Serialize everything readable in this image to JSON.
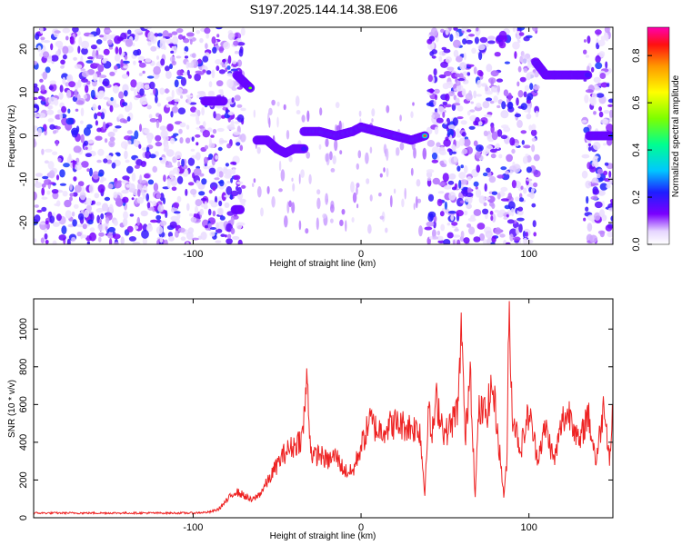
{
  "title": "S197.2025.144.14.38.E06",
  "chart_data": [
    {
      "type": "heatmap",
      "xlabel": "Height of straight line (km)",
      "ylabel": "Frequency (Hz)",
      "xlim": [
        -195,
        150
      ],
      "ylim": [
        -25,
        25
      ],
      "xticks": [
        -100,
        0,
        100
      ],
      "yticks": [
        -20,
        -10,
        0,
        10,
        20
      ],
      "colorbar": {
        "label": "Normalized spectral amplitude",
        "range": [
          0.0,
          0.92
        ],
        "ticks": [
          0.0,
          0.2,
          0.4,
          0.6,
          0.8
        ]
      },
      "noise_regions": [
        {
          "x0": -195,
          "x1": -70
        },
        {
          "x0": 40,
          "x1": 105
        },
        {
          "x0": 133,
          "x1": 150
        }
      ],
      "tracks": [
        {
          "x": [
            -93,
            -82
          ],
          "f": [
            8,
            8
          ],
          "amp": 0.3
        },
        {
          "x": [
            -74,
            -66
          ],
          "f": [
            14,
            11
          ],
          "amp": 0.35
        },
        {
          "x": [
            -75,
            -72
          ],
          "f": [
            -17,
            -17
          ],
          "amp": 0.3
        },
        {
          "x": [
            -62,
            -56,
            -50,
            -45,
            -40,
            -34
          ],
          "f": [
            -1,
            -1,
            -3,
            -4,
            -3,
            -3
          ],
          "amp": 0.35
        },
        {
          "x": [
            -34,
            -25,
            -15,
            -5,
            0,
            10,
            20,
            30,
            38
          ],
          "f": [
            1,
            1,
            0,
            1,
            2,
            1,
            0,
            -1,
            0
          ],
          "amp": 0.7
        },
        {
          "x": [
            104,
            110,
            115,
            125,
            135
          ],
          "f": [
            17,
            14,
            14,
            14,
            14
          ],
          "amp": 0.5
        },
        {
          "x": [
            136,
            150
          ],
          "f": [
            0,
            0
          ],
          "amp": 0.5
        }
      ]
    },
    {
      "type": "line",
      "xlabel": "Height of straight line (km)",
      "ylabel": "SNR (10 * v/v)",
      "xlim": [
        -195,
        150
      ],
      "ylim": [
        0,
        1160
      ],
      "xticks": [
        -100,
        0,
        100
      ],
      "yticks": [
        0,
        200,
        400,
        600,
        800,
        1000
      ],
      "color": "#ee2222",
      "series": [
        {
          "x": [
            -195,
            -160,
            -120,
            -100,
            -90,
            -85,
            -80,
            -75,
            -70,
            -65,
            -60,
            -55,
            -50,
            -45,
            -40,
            -35,
            -32,
            -30,
            -28,
            -25,
            -20,
            -15,
            -10,
            -5,
            0,
            3,
            5,
            10,
            15,
            20,
            25,
            30,
            35,
            38,
            40,
            42,
            45,
            50,
            55,
            58,
            60,
            62,
            65,
            68,
            70,
            75,
            78,
            80,
            85,
            87,
            88,
            90,
            92,
            95,
            100,
            105,
            110,
            115,
            120,
            125,
            130,
            135,
            140,
            145,
            148,
            150
          ],
          "y": [
            25,
            25,
            25,
            25,
            30,
            45,
            90,
            140,
            120,
            90,
            130,
            200,
            280,
            350,
            380,
            430,
            740,
            360,
            320,
            340,
            300,
            330,
            250,
            240,
            380,
            450,
            520,
            460,
            480,
            500,
            490,
            480,
            470,
            120,
            600,
            420,
            620,
            440,
            520,
            600,
            1050,
            380,
            820,
            100,
            560,
            560,
            700,
            580,
            120,
            300,
            1160,
            560,
            480,
            360,
            560,
            320,
            480,
            300,
            520,
            560,
            380,
            560,
            300,
            620,
            300,
            580
          ]
        }
      ]
    }
  ]
}
